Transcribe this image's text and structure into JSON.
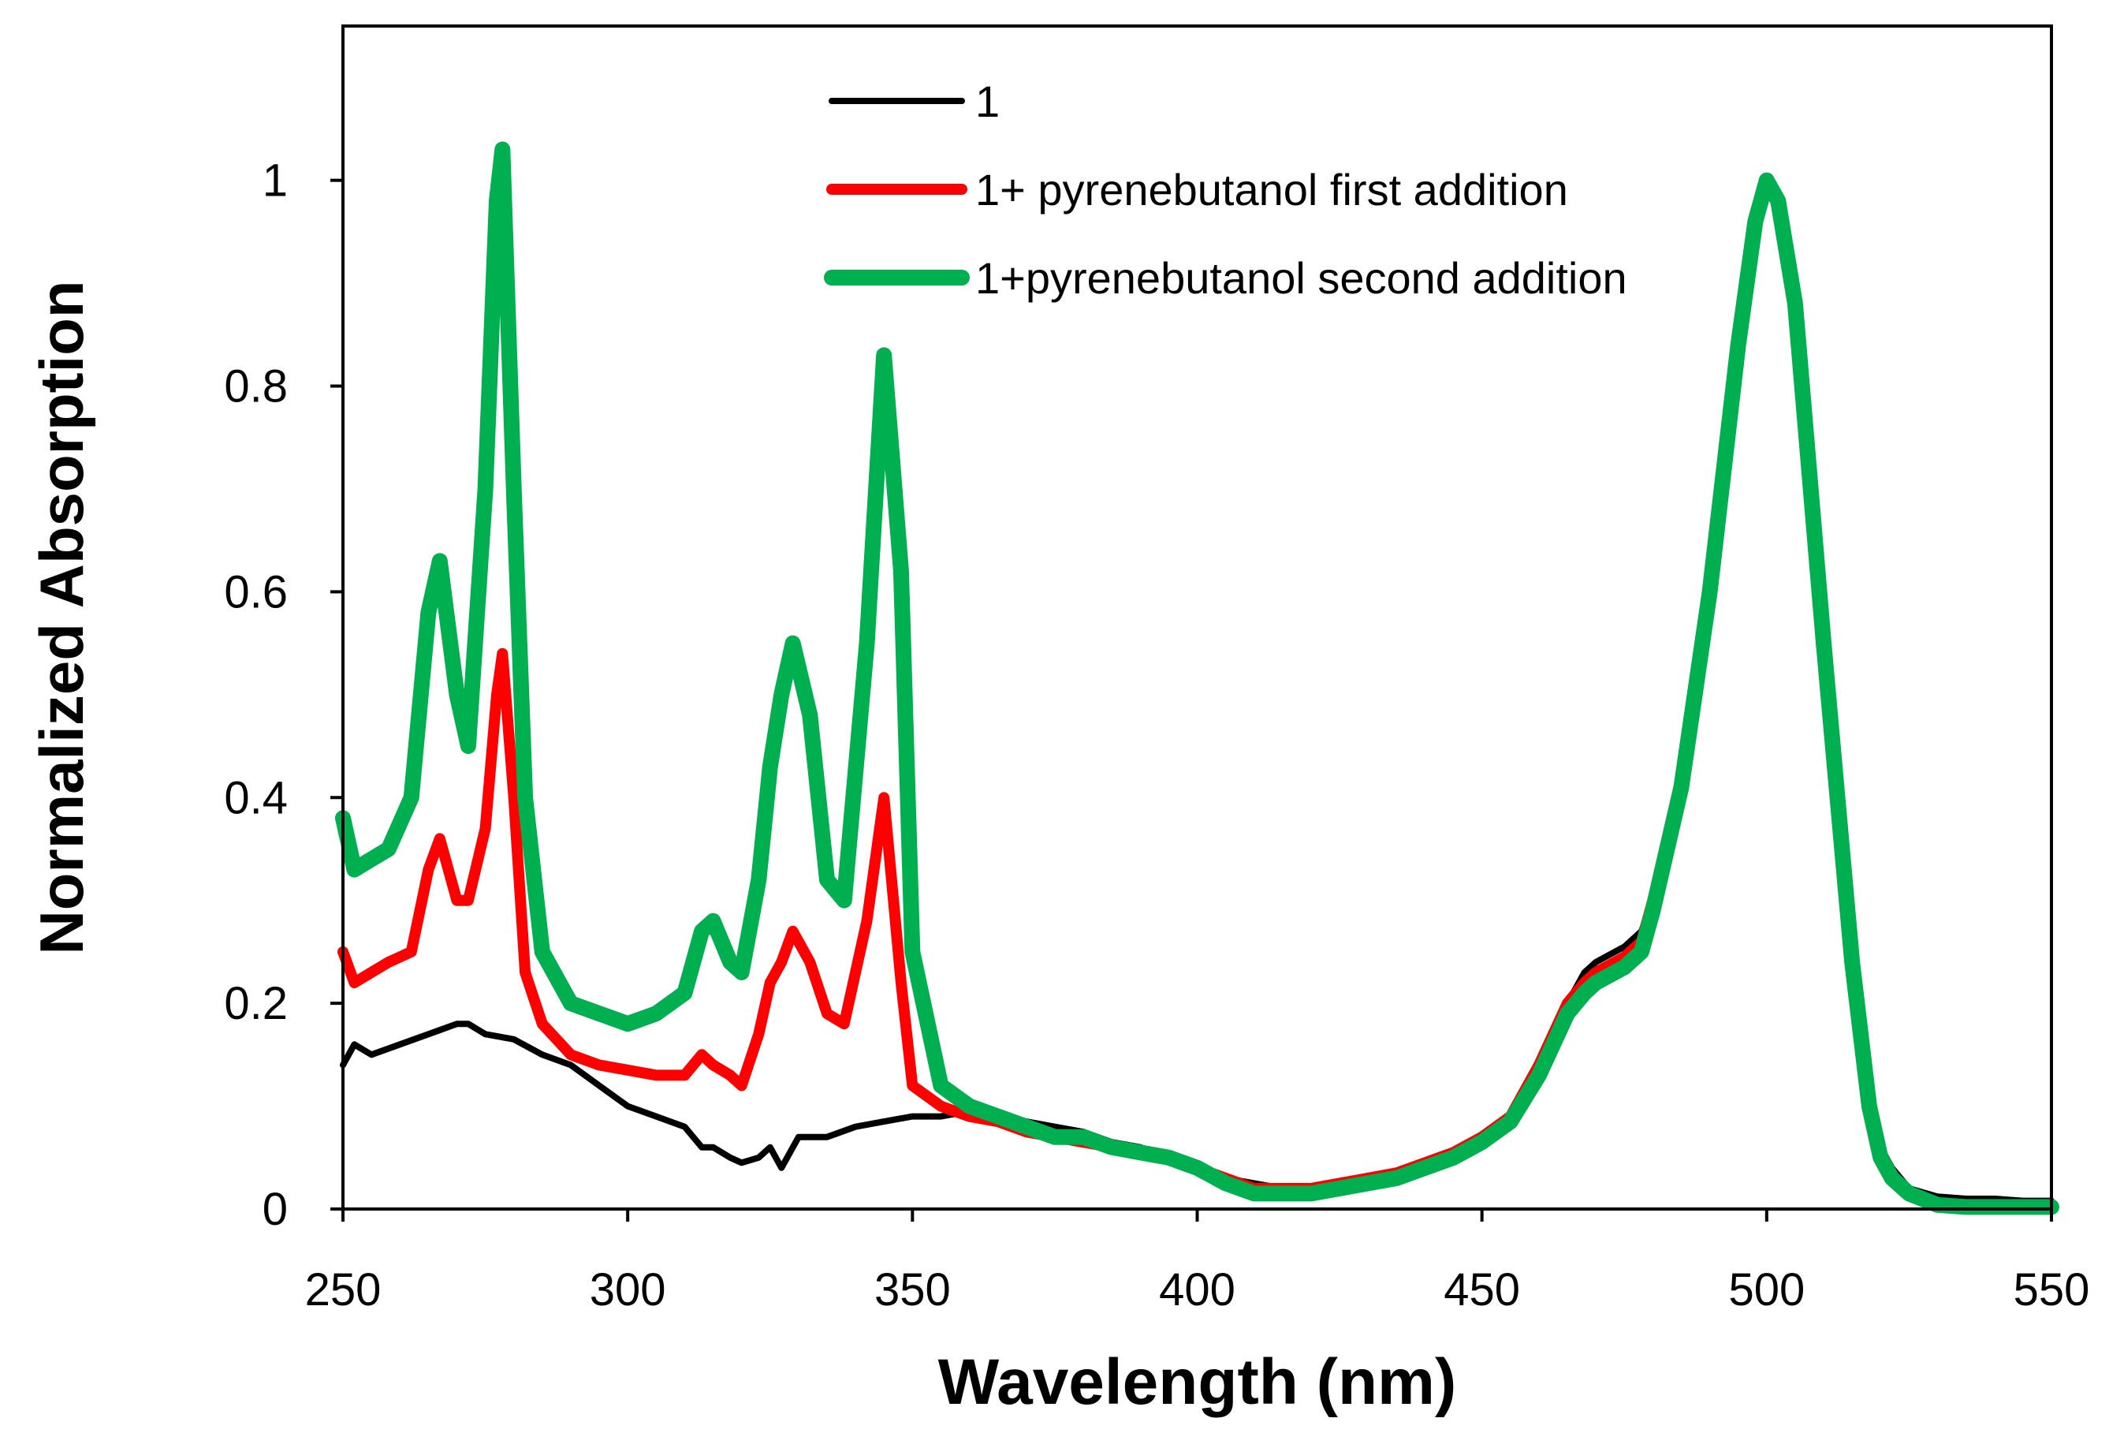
{
  "chart_data": {
    "type": "line",
    "title": "",
    "xlabel": "Wavelength (nm)",
    "ylabel": "Normalized Absorption",
    "xlim": [
      250,
      550
    ],
    "ylim": [
      0,
      1.15
    ],
    "x_ticks": [
      250,
      300,
      350,
      400,
      450,
      500,
      550
    ],
    "y_ticks": [
      0,
      0.2,
      0.4,
      0.6,
      0.8,
      1
    ],
    "y_tick_labels": [
      "0",
      "0.2",
      "0.4",
      "0.6",
      "0.8",
      "1"
    ],
    "grid": false,
    "legend_position": "top-center",
    "series": [
      {
        "name": "1",
        "color": "#000000",
        "x": [
          250,
          252,
          255,
          260,
          265,
          270,
          272,
          275,
          280,
          285,
          290,
          295,
          300,
          305,
          310,
          313,
          315,
          318,
          320,
          323,
          325,
          327,
          330,
          335,
          340,
          345,
          350,
          355,
          360,
          365,
          370,
          375,
          380,
          385,
          390,
          395,
          400,
          405,
          410,
          415,
          420,
          425,
          430,
          435,
          440,
          445,
          450,
          455,
          460,
          465,
          468,
          470,
          475,
          478,
          480,
          485,
          490,
          495,
          498,
          500,
          502,
          505,
          510,
          515,
          518,
          520,
          522,
          525,
          530,
          535,
          540,
          545,
          550
        ],
        "y": [
          0.14,
          0.16,
          0.15,
          0.16,
          0.17,
          0.18,
          0.18,
          0.17,
          0.165,
          0.15,
          0.14,
          0.12,
          0.1,
          0.09,
          0.08,
          0.06,
          0.06,
          0.05,
          0.045,
          0.05,
          0.06,
          0.04,
          0.07,
          0.07,
          0.08,
          0.085,
          0.09,
          0.09,
          0.095,
          0.09,
          0.085,
          0.08,
          0.075,
          0.065,
          0.06,
          0.05,
          0.04,
          0.03,
          0.025,
          0.02,
          0.02,
          0.025,
          0.03,
          0.035,
          0.045,
          0.055,
          0.07,
          0.09,
          0.14,
          0.2,
          0.23,
          0.24,
          0.255,
          0.27,
          0.3,
          0.42,
          0.6,
          0.84,
          0.96,
          1.0,
          0.98,
          0.88,
          0.55,
          0.24,
          0.1,
          0.06,
          0.04,
          0.02,
          0.012,
          0.01,
          0.01,
          0.008,
          0.008
        ]
      },
      {
        "name": "1+ pyrenebutanol first addition",
        "color": "#ff0000",
        "x": [
          250,
          252,
          255,
          258,
          262,
          265,
          267,
          270,
          272,
          275,
          277,
          278,
          280,
          282,
          285,
          290,
          295,
          300,
          305,
          310,
          313,
          315,
          318,
          320,
          323,
          325,
          327,
          329,
          332,
          335,
          338,
          342,
          345,
          348,
          350,
          355,
          360,
          365,
          370,
          375,
          380,
          385,
          390,
          395,
          400,
          405,
          410,
          415,
          420,
          425,
          430,
          435,
          440,
          445,
          450,
          455,
          460,
          465,
          468,
          470,
          475,
          478,
          480,
          485,
          490,
          495,
          498,
          500,
          502,
          505,
          510,
          515,
          518,
          520,
          522,
          525,
          530,
          535,
          540,
          545,
          550
        ],
        "y": [
          0.25,
          0.22,
          0.23,
          0.24,
          0.25,
          0.33,
          0.36,
          0.3,
          0.3,
          0.37,
          0.5,
          0.54,
          0.4,
          0.23,
          0.18,
          0.15,
          0.14,
          0.135,
          0.13,
          0.13,
          0.15,
          0.14,
          0.13,
          0.12,
          0.17,
          0.22,
          0.24,
          0.27,
          0.24,
          0.19,
          0.18,
          0.28,
          0.4,
          0.22,
          0.12,
          0.1,
          0.09,
          0.085,
          0.075,
          0.07,
          0.065,
          0.06,
          0.055,
          0.05,
          0.04,
          0.03,
          0.02,
          0.02,
          0.02,
          0.025,
          0.03,
          0.035,
          0.045,
          0.055,
          0.07,
          0.09,
          0.14,
          0.2,
          0.22,
          0.23,
          0.245,
          0.26,
          0.3,
          0.42,
          0.6,
          0.84,
          0.96,
          1.0,
          0.98,
          0.88,
          0.55,
          0.24,
          0.1,
          0.05,
          0.03,
          0.015,
          0.005,
          0.003,
          0.003,
          0.003,
          0.003
        ]
      },
      {
        "name": "1+pyrenebutanol second addition",
        "color": "#00b050",
        "x": [
          250,
          252,
          255,
          258,
          262,
          265,
          267,
          270,
          272,
          275,
          277,
          278,
          280,
          282,
          285,
          290,
          295,
          300,
          305,
          310,
          313,
          315,
          318,
          320,
          323,
          325,
          327,
          329,
          332,
          335,
          338,
          342,
          345,
          348,
          350,
          355,
          360,
          365,
          370,
          375,
          380,
          385,
          390,
          395,
          400,
          405,
          410,
          415,
          420,
          425,
          430,
          435,
          440,
          445,
          450,
          455,
          460,
          465,
          468,
          470,
          475,
          478,
          480,
          485,
          490,
          495,
          498,
          500,
          502,
          505,
          510,
          515,
          518,
          520,
          522,
          525,
          530,
          535,
          540,
          545,
          550
        ],
        "y": [
          0.38,
          0.33,
          0.34,
          0.35,
          0.4,
          0.58,
          0.63,
          0.5,
          0.45,
          0.7,
          0.98,
          1.03,
          0.7,
          0.4,
          0.25,
          0.2,
          0.19,
          0.18,
          0.19,
          0.21,
          0.27,
          0.28,
          0.24,
          0.23,
          0.32,
          0.43,
          0.5,
          0.55,
          0.48,
          0.32,
          0.3,
          0.55,
          0.83,
          0.62,
          0.25,
          0.12,
          0.1,
          0.09,
          0.08,
          0.07,
          0.07,
          0.06,
          0.055,
          0.05,
          0.04,
          0.025,
          0.015,
          0.015,
          0.015,
          0.02,
          0.025,
          0.03,
          0.04,
          0.05,
          0.065,
          0.085,
          0.13,
          0.19,
          0.21,
          0.22,
          0.235,
          0.25,
          0.29,
          0.41,
          0.6,
          0.84,
          0.96,
          1.0,
          0.98,
          0.88,
          0.55,
          0.24,
          0.1,
          0.05,
          0.03,
          0.015,
          0.004,
          0.002,
          0.002,
          0.002,
          0.002
        ]
      }
    ]
  }
}
